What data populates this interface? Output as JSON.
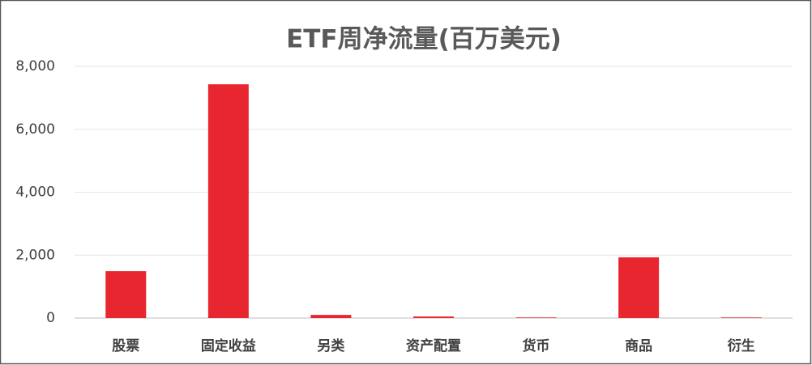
{
  "chart_data": {
    "type": "bar",
    "title": "ETF周净流量(百万美元)",
    "categories": [
      "股票",
      "固定收益",
      "另类",
      "资产配置",
      "货币",
      "商品",
      "衍生"
    ],
    "values": [
      1490,
      7430,
      100,
      50,
      20,
      1930,
      20
    ],
    "color": "#e8262f",
    "ylim": [
      0,
      8000
    ],
    "yticks": [
      0,
      {
        "value": 2000,
        "label": "2,000"
      },
      {
        "value": 4000,
        "label": "4,000"
      },
      {
        "value": 6000,
        "label": "6,000"
      },
      {
        "value": 8000,
        "label": "8,000"
      }
    ],
    "grid": true
  }
}
